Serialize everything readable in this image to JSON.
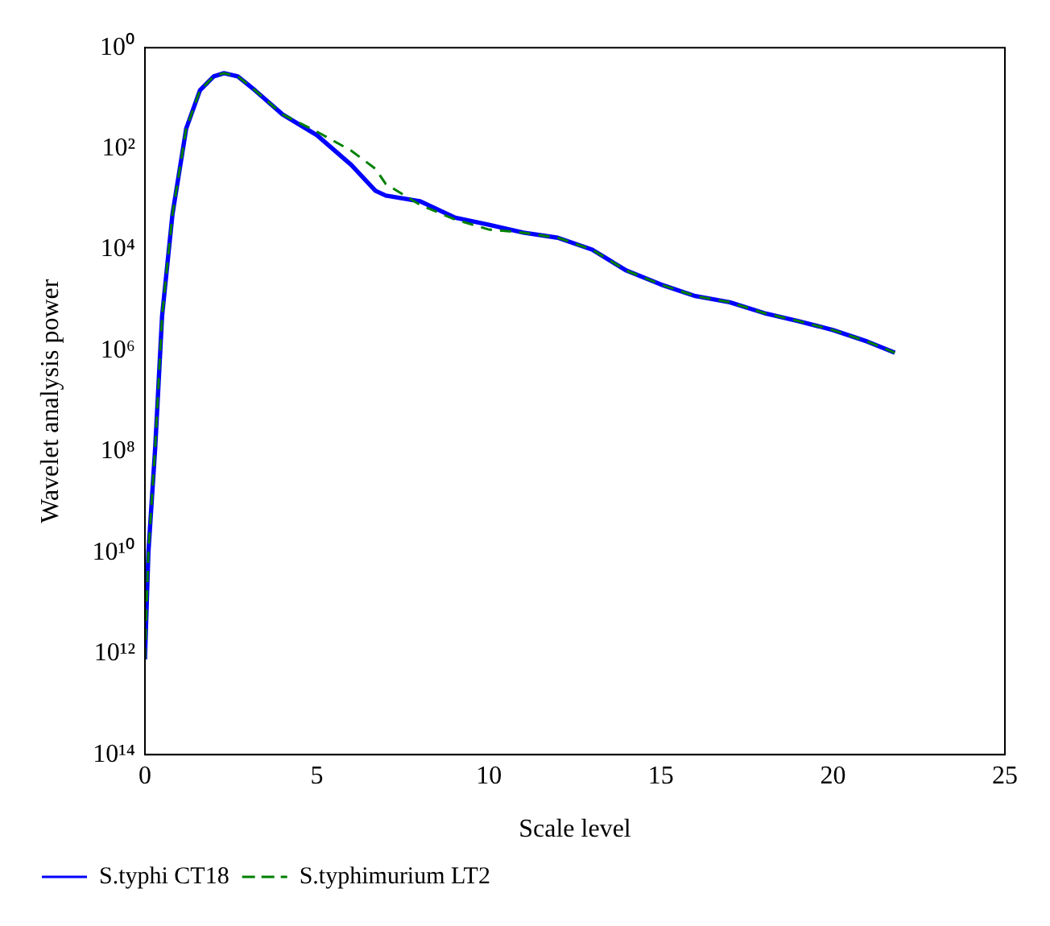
{
  "chart_data": {
    "type": "line",
    "xlabel": "Scale level",
    "ylabel": "Wavelet analysis power",
    "x": [
      0,
      0.1,
      0.3,
      0.5,
      0.8,
      1.2,
      1.6,
      2,
      2.3,
      2.7,
      3.2,
      4,
      5,
      6,
      6.7,
      7,
      8,
      9,
      10,
      11,
      12,
      13,
      14,
      15,
      16,
      17,
      18,
      19,
      20,
      21,
      21.8
    ],
    "series": [
      {
        "name": "S.typhi CT18",
        "color": "#0000ff",
        "line_style": "solid",
        "values": [
          1300000000000.0,
          10000000000.0,
          80000000.0,
          200000.0,
          2000,
          40,
          7,
          3.7,
          3.2,
          3.7,
          7,
          21,
          54,
          210,
          680,
          850,
          1100,
          2300,
          3200,
          4600,
          5800,
          10000,
          26000,
          49000,
          83000,
          110000,
          180000,
          260000,
          390000,
          660000,
          1100000
        ]
      },
      {
        "name": "S.typhimurium LT2",
        "color": "#008000",
        "line_style": "dashed",
        "values": [
          1300000000000.0,
          10000000000.0,
          80000000.0,
          200000.0,
          2000,
          40,
          7,
          3.7,
          3.2,
          3.7,
          7,
          21,
          46,
          110,
          250,
          500,
          1300,
          2500,
          4000,
          4600,
          5800,
          10000,
          26000,
          49000,
          83000,
          110000,
          180000,
          260000,
          390000,
          660000,
          1100000
        ]
      }
    ],
    "log": "y",
    "xlim": [
      0,
      25
    ],
    "xticks": [
      0,
      5,
      10,
      15,
      20,
      25
    ],
    "ylim": [
      100000000000000.0,
      1
    ],
    "yticks": [
      {
        "value": 1,
        "label": "10⁰"
      },
      {
        "value": 100,
        "label": "10²"
      },
      {
        "value": 10000,
        "label": "10⁴"
      },
      {
        "value": 1000000,
        "label": "10⁶"
      },
      {
        "value": 100000000,
        "label": "10⁸"
      },
      {
        "value": 10000000000,
        "label": "10¹⁰"
      },
      {
        "value": 1000000000000,
        "label": "10¹²"
      },
      {
        "value": 100000000000000,
        "label": "10¹⁴"
      }
    ],
    "grid": false,
    "legend": "bottom left",
    "marker": "none"
  }
}
